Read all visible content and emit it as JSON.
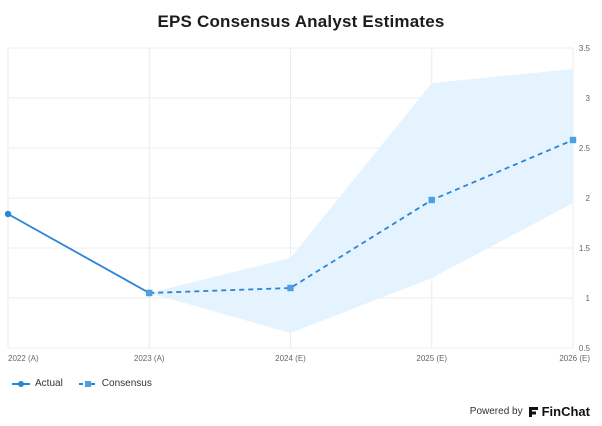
{
  "chart_data": {
    "type": "line",
    "title": "EPS Consensus Analyst Estimates",
    "categories": [
      "2022 (A)",
      "2023 (A)",
      "2024 (E)",
      "2025 (E)",
      "2026 (E)"
    ],
    "series": [
      {
        "name": "Actual",
        "style": "solid",
        "marker": "circle",
        "values": [
          1.84,
          1.05,
          null,
          null,
          null
        ]
      },
      {
        "name": "Consensus",
        "style": "dashed",
        "marker": "square",
        "values": [
          null,
          1.05,
          1.1,
          1.98,
          2.58
        ]
      }
    ],
    "range_band": {
      "high": [
        null,
        1.05,
        1.4,
        3.15,
        3.29
      ],
      "low": [
        null,
        1.05,
        0.65,
        1.2,
        1.95
      ]
    },
    "yaxis": {
      "position": "right",
      "ticks": [
        "0.5",
        "1",
        "1.5",
        "2",
        "2.5",
        "3",
        "3.5"
      ],
      "ylim": [
        0.5,
        3.5
      ]
    },
    "grid": true,
    "legend": "bottom-left",
    "colors": {
      "line": "#2a84d8",
      "band": "#e4f3fd",
      "grid": "#ececec",
      "axis": "#666666"
    }
  },
  "footer": {
    "powered_by": "Powered by",
    "brand": "FinChat"
  }
}
